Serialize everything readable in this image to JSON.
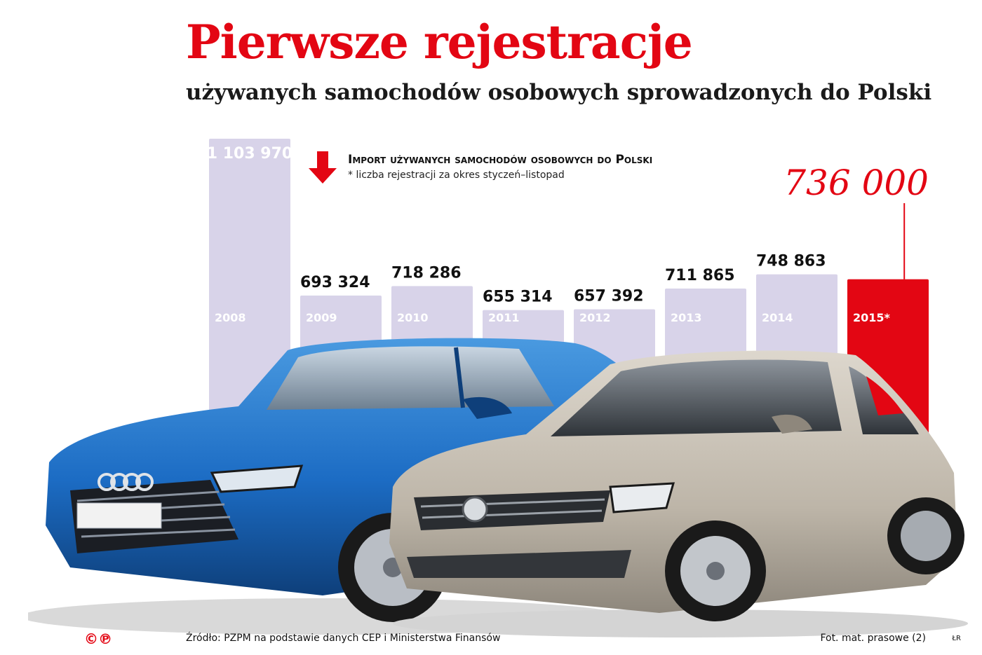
{
  "colors": {
    "accent": "#e30613",
    "bar": "#d8d3e9",
    "highlight_bar": "#e30613",
    "text": "#111111"
  },
  "chart_data": {
    "type": "bar",
    "title": "Pierwsze rejestracje",
    "subtitle": "używanych samochodów osobowych sprowadzonych do Polski",
    "legend_title": "Import używanych samochodów osobowych do Polski",
    "legend_note": "* liczba rejestracji za okres styczeń–listopad",
    "categories": [
      "2008",
      "2009",
      "2010",
      "2011",
      "2012",
      "2013",
      "2014",
      "2015*"
    ],
    "values": [
      1103970,
      693324,
      718286,
      655314,
      657392,
      711865,
      748863,
      736000
    ],
    "value_labels": [
      "1 103 970",
      "693 324",
      "718 286",
      "655 314",
      "657 392",
      "711 865",
      "748 863",
      "736 000"
    ],
    "highlight_index": 7,
    "xlabel": "",
    "ylabel": "",
    "ylim": [
      0,
      1103970
    ],
    "grid": false
  },
  "footer": {
    "logo": "©℗",
    "source": "Źródło: PZPM na podstawie danych CEP i Ministerstwa Finansów",
    "credit": "Fot. mat. prasowe (2)",
    "author": "ŁR"
  },
  "images": {
    "left_car": "blue-sedan-icon",
    "right_car": "silver-hatchback-icon"
  }
}
